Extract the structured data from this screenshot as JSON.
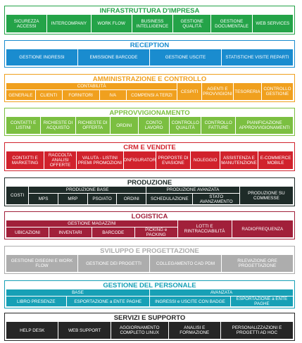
{
  "sections": [
    {
      "title": "INFRASTRUTTURA D'IMPRESA",
      "color": "#24a348",
      "items": [
        "SICUREZZA ACCESSI",
        "INTERCOMPANY",
        "WORK FLOW",
        "BUSINESS INTELLIGENCE",
        "GESTIONE QUALITÀ",
        "GESTIONE DOCUMENTALE",
        "WEB SERVICES"
      ]
    },
    {
      "title": "RECEPTION",
      "color": "#1a8ccf",
      "items": [
        "GESTIONE INGRESSI",
        "EMISSIONE BARCODE",
        "GESTIONE USCITE",
        "STATISTICHE VISITE REPARTI"
      ]
    },
    {
      "title": "AMMINISTRAZIONE E CONTROLLO",
      "color": "#f0a01e",
      "items": [
        {
          "label": "CONTABILITÀ",
          "items": [
            "GENERALE",
            "CLIENTI",
            "FORNITORI",
            "IVA",
            "COMPENSI A TERZI"
          ]
        },
        "CESPITI",
        "AGENTI E PROVVIGIONI",
        "TESORERIA",
        "CONTROLLO GESTIONE"
      ]
    },
    {
      "title": "APPROVVIGIONAMENTO",
      "color": "#7bbf41",
      "items": [
        "CONTATTI E LISTINI",
        "RICHIESTE DI ACQUISTO",
        "RICHIESTE DI OFFERTA",
        "ORDINI",
        "CONTO LAVORO",
        "CONTROLLO QUALITÀ",
        "CONTROLLO FATTURE",
        "PIANIFICAZIONE APPROVVIGIONAMENTI"
      ]
    },
    {
      "title": "CRM E VENDITE",
      "color": "#d1222c",
      "items": [
        "CONTATTI E MARKETING",
        "RACCOLTA ANALISI OFFERTE",
        "VALUTA - LISTINI PREMI PROMOZIONI",
        "CONFIGURATORE",
        "PROPOSTE DI EVASIONE",
        "NOLEGGIO",
        "ASSISTENZA E MANUTENZIONE",
        "E-COMMERCE MOBILE"
      ]
    },
    {
      "title": "PRODUZIONE",
      "color": "#1e2b28",
      "items": [
        "COSTI",
        {
          "label": "PRODUZIONE BASE",
          "items": [
            "MPS",
            "MRP",
            "PSO/ATO",
            "ORDINI"
          ]
        },
        {
          "label": "PRODUZIONE AVANZATA",
          "items": [
            "SCHEDULAZIONE",
            "STATO AVANZAMENTO"
          ]
        },
        "PRODUZIONE SU COMMESSE"
      ]
    },
    {
      "title": "LOGISTICA",
      "color": "#a1203a",
      "items": [
        {
          "label": "GESTIONE MAGAZZINI",
          "items": [
            "UBICAZIONI",
            "INVENTARI",
            "BARCODE",
            "PICKING e PACKING"
          ]
        },
        "LOTTI E RINTRACCIABILITÀ",
        "RADIOFREQUENZA"
      ]
    },
    {
      "title": "SVILUPPO E PROGETTAZIONE",
      "color": "#adadad",
      "items": [
        "GESTIONE DISEGNI E WORK FLOW",
        "GESTIONE DEI PROGETTI",
        "COLLEGAMENTO CAD PDM",
        "RILEVAZIONE ORE PROGETTAZIONE"
      ]
    },
    {
      "title": "GESTIONE DEL PERSONALE",
      "color": "#17a0b6",
      "items": [
        {
          "label": "BASE",
          "items": [
            "LIBRO PRESENZE",
            "ESPORTAZIONE a ENTE PAGHE"
          ]
        },
        {
          "label": "AVANZATA",
          "items": [
            "INGRESSI e USCITE CON BADGE",
            "ESPORTAZIONE a ENTE PAGHE"
          ]
        }
      ]
    },
    {
      "title": "SERVIZI E SUPPORTO",
      "color": "#262626",
      "items": [
        "HELP DESK",
        "WEB SUPPORT",
        "AGGIORNAMENTO COMPLETO LINUX",
        "ANALISI E FORMAZIONE",
        "PERSONALIZZAZIONI E PROGETTI AD HOC"
      ]
    }
  ]
}
